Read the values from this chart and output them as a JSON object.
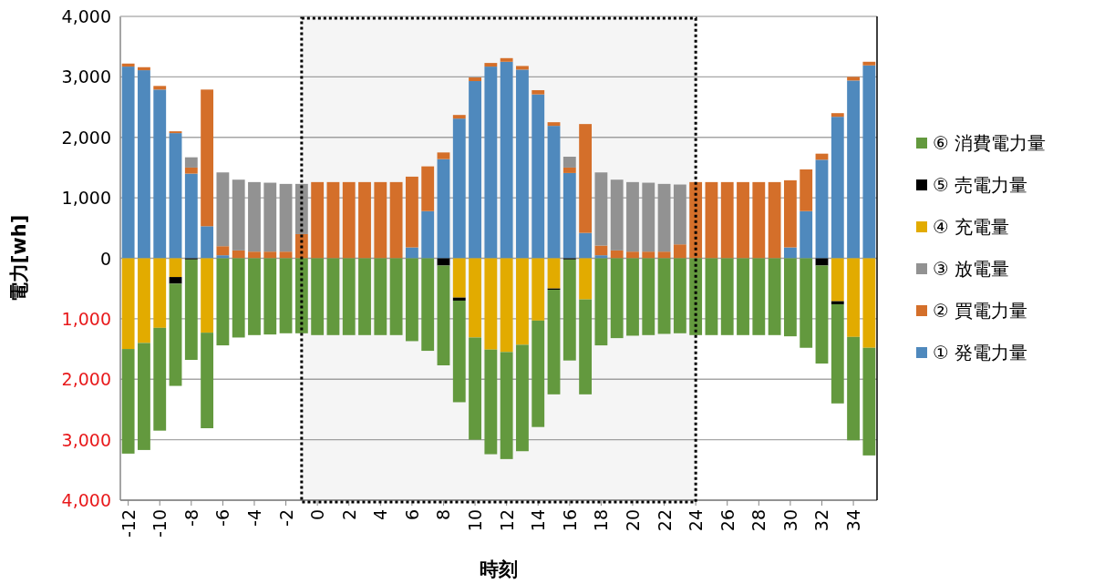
{
  "chart_data": {
    "type": "bar",
    "stacked": true,
    "xlabel": "時刻",
    "ylabel": "電力[wh]",
    "x": [
      -12,
      -11,
      -10,
      -9,
      -8,
      -7,
      -6,
      -5,
      -4,
      -3,
      -2,
      -1,
      0,
      1,
      2,
      3,
      4,
      5,
      6,
      7,
      8,
      9,
      10,
      11,
      12,
      13,
      14,
      15,
      16,
      17,
      18,
      19,
      20,
      21,
      22,
      23,
      24,
      25,
      26,
      27,
      28,
      29,
      30,
      31,
      32,
      33,
      34,
      35
    ],
    "xlim": [
      -12.5,
      35.5
    ],
    "xticks": [
      -12,
      -10,
      -8,
      -6,
      -4,
      -2,
      0,
      2,
      4,
      6,
      8,
      10,
      12,
      14,
      16,
      18,
      20,
      22,
      24,
      26,
      28,
      30,
      32,
      34
    ],
    "ylim": [
      -4000,
      4000
    ],
    "yticks": [
      {
        "value": -4000,
        "label": "4,000"
      },
      {
        "value": -3000,
        "label": "3,000"
      },
      {
        "value": -2000,
        "label": "2,000"
      },
      {
        "value": -1000,
        "label": "1,000"
      },
      {
        "value": 0,
        "label": "0"
      },
      {
        "value": 1000,
        "label": "1,000"
      },
      {
        "value": 2000,
        "label": "2,000"
      },
      {
        "value": 3000,
        "label": "3,000"
      },
      {
        "value": 4000,
        "label": "4,000"
      }
    ],
    "grid": "y",
    "legend": "right",
    "bands": [
      {
        "axis": "x",
        "from": -1,
        "to": 24,
        "color": "#000000"
      }
    ],
    "series": [
      {
        "name": "① 発電力量",
        "color": "#4f89bd",
        "values": [
          3170,
          3110,
          2790,
          2070,
          1400,
          530,
          50,
          0,
          0,
          0,
          0,
          0,
          0,
          0,
          0,
          0,
          0,
          0,
          180,
          780,
          1640,
          2310,
          2930,
          3170,
          3250,
          3120,
          2710,
          2190,
          1410,
          420,
          50,
          0,
          0,
          0,
          0,
          0,
          0,
          0,
          0,
          0,
          0,
          0,
          180,
          780,
          1630,
          2340,
          2940,
          3190
        ]
      },
      {
        "name": "② 買電力量",
        "color": "#d46f2a",
        "values": [
          50,
          50,
          60,
          30,
          100,
          2260,
          150,
          130,
          110,
          110,
          110,
          400,
          1260,
          1260,
          1260,
          1260,
          1260,
          1260,
          1170,
          740,
          110,
          60,
          60,
          60,
          60,
          60,
          70,
          60,
          90,
          1800,
          160,
          130,
          110,
          110,
          110,
          230,
          1260,
          1260,
          1260,
          1260,
          1260,
          1260,
          1110,
          690,
          100,
          60,
          60,
          60
        ]
      },
      {
        "name": "③ 放電量",
        "color": "#929292",
        "values": [
          0,
          0,
          0,
          0,
          170,
          0,
          1220,
          1170,
          1150,
          1140,
          1120,
          830,
          0,
          0,
          0,
          0,
          0,
          0,
          0,
          0,
          0,
          0,
          0,
          0,
          0,
          0,
          0,
          0,
          180,
          0,
          1210,
          1170,
          1150,
          1140,
          1120,
          990,
          0,
          0,
          0,
          0,
          0,
          0,
          0,
          0,
          0,
          0,
          0,
          0
        ]
      },
      {
        "name": "④ 充電量",
        "color": "#e2ab00",
        "values": [
          -1500,
          -1400,
          -1150,
          -310,
          0,
          -1230,
          0,
          0,
          0,
          0,
          0,
          0,
          0,
          0,
          0,
          0,
          0,
          0,
          0,
          0,
          0,
          -650,
          -1310,
          -1510,
          -1550,
          -1430,
          -1030,
          -500,
          0,
          -680,
          0,
          0,
          0,
          0,
          0,
          0,
          0,
          0,
          0,
          0,
          0,
          0,
          0,
          0,
          0,
          -710,
          -1300,
          -1480
        ]
      },
      {
        "name": "⑤ 売電力量",
        "color": "#000000",
        "values": [
          0,
          0,
          0,
          -110,
          -20,
          0,
          0,
          0,
          0,
          0,
          0,
          0,
          0,
          0,
          0,
          0,
          0,
          0,
          0,
          0,
          -120,
          -50,
          0,
          0,
          0,
          0,
          0,
          -20,
          -20,
          0,
          0,
          0,
          0,
          0,
          0,
          0,
          0,
          0,
          0,
          0,
          0,
          0,
          0,
          0,
          -120,
          -50,
          0,
          0
        ]
      },
      {
        "name": "⑥ 消費電力量",
        "color": "#63993e",
        "values": [
          -1730,
          -1770,
          -1700,
          -1690,
          -1660,
          -1580,
          -1440,
          -1310,
          -1270,
          -1260,
          -1240,
          -1240,
          -1270,
          -1270,
          -1270,
          -1270,
          -1270,
          -1270,
          -1370,
          -1530,
          -1650,
          -1680,
          -1690,
          -1730,
          -1770,
          -1760,
          -1760,
          -1730,
          -1670,
          -1570,
          -1440,
          -1320,
          -1280,
          -1270,
          -1250,
          -1240,
          -1270,
          -1270,
          -1270,
          -1270,
          -1270,
          -1270,
          -1290,
          -1480,
          -1620,
          -1640,
          -1710,
          -1780
        ]
      }
    ]
  }
}
